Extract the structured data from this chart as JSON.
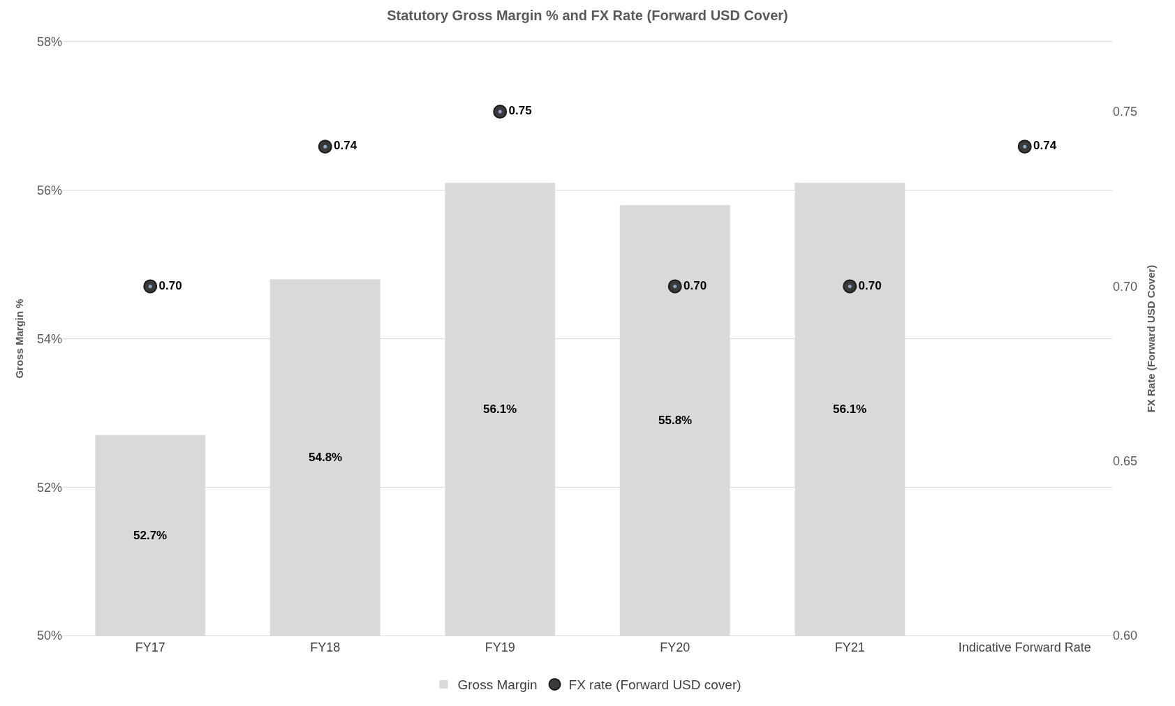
{
  "chart_data": {
    "type": "bar",
    "title": "Statutory Gross Margin % and FX Rate (Forward USD Cover)",
    "ylabel": "Gross Margin %",
    "y2label": "FX Rate (Forward USD Cover)",
    "categories": [
      "FY17",
      "FY18",
      "FY19",
      "FY20",
      "FY21",
      "Indicative Forward Rate"
    ],
    "series": [
      {
        "name": "Gross Margin",
        "color": "#d9d9d9",
        "values": [
          52.7,
          54.8,
          56.1,
          55.8,
          56.1,
          null
        ],
        "value_labels": [
          "52.7%",
          "54.8%",
          "56.1%",
          "55.8%",
          "56.1%",
          null
        ]
      },
      {
        "name": "FX rate (Forward USD cover)",
        "type": "scatter",
        "axis": "y2",
        "color": "#3a3a3a",
        "marker": "circle",
        "values": [
          0.7,
          0.74,
          0.75,
          0.7,
          0.7,
          0.74
        ],
        "value_labels": [
          "0.70",
          "0.74",
          "0.75",
          "0.70",
          "0.70",
          "0.74"
        ]
      }
    ],
    "ylim": [
      50,
      58
    ],
    "yticks": [
      {
        "value": 50,
        "label": "50%"
      },
      {
        "value": 52,
        "label": "52%"
      },
      {
        "value": 54,
        "label": "54%"
      },
      {
        "value": 56,
        "label": "56%"
      },
      {
        "value": 58,
        "label": "58%"
      }
    ],
    "y2lim": [
      0.6,
      0.77
    ],
    "y2ticks": [
      {
        "value": 0.6,
        "label": "0.60"
      },
      {
        "value": 0.65,
        "label": "0.65"
      },
      {
        "value": 0.7,
        "label": "0.70"
      },
      {
        "value": 0.75,
        "label": "0.75"
      }
    ],
    "grid": "y",
    "legend": "bottom"
  }
}
